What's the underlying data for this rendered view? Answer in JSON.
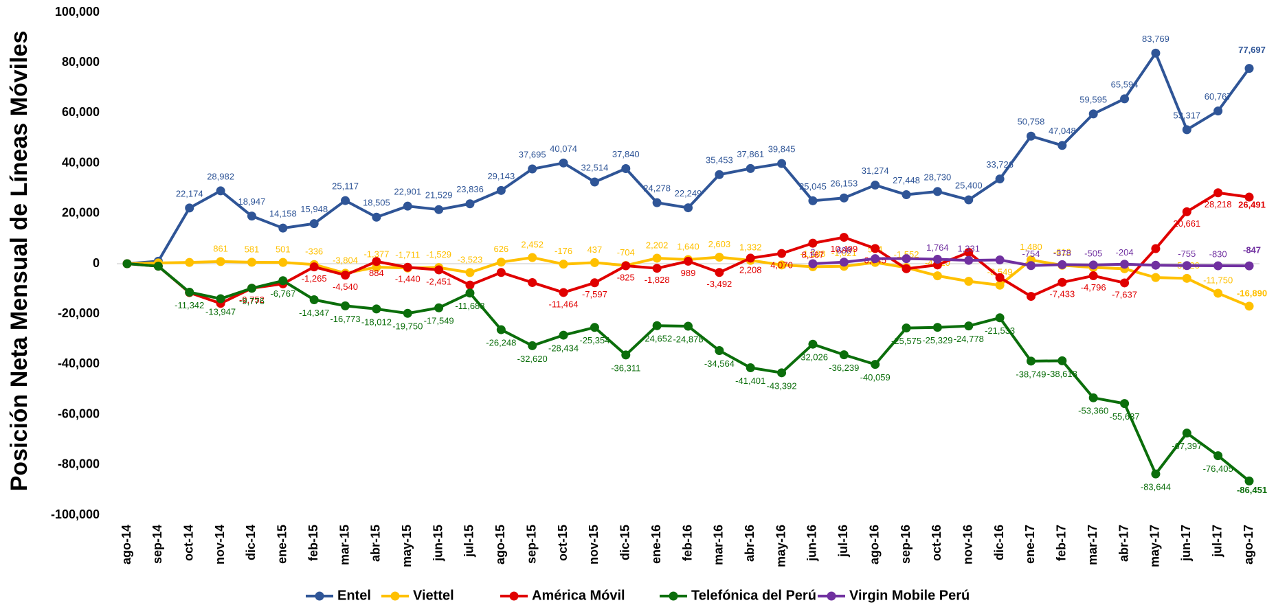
{
  "chart_data": {
    "type": "line",
    "y_label": "Posición Neta Mensual de Líneas Móviles",
    "categories": [
      "ago-14",
      "sep-14",
      "oct-14",
      "nov-14",
      "dic-14",
      "ene-15",
      "feb-15",
      "mar-15",
      "abr-15",
      "may-15",
      "jun-15",
      "jul-15",
      "ago-15",
      "sep-15",
      "oct-15",
      "nov-15",
      "dic-15",
      "ene-16",
      "feb-16",
      "mar-16",
      "abr-16",
      "may-16",
      "jun-16",
      "jul-16",
      "ago-16",
      "sep-16",
      "oct-16",
      "nov-16",
      "dic-16",
      "ene-17",
      "feb-17",
      "mar-17",
      "abr-17",
      "may-17",
      "jun-17",
      "jul-17",
      "ago-17"
    ],
    "ylim": [
      -100000,
      100000
    ],
    "yticks": [
      {
        "value": -100000,
        "label": "-100,000"
      },
      {
        "value": -80000,
        "label": "-80,000"
      },
      {
        "value": -60000,
        "label": "-60,000"
      },
      {
        "value": -40000,
        "label": "-40,000"
      },
      {
        "value": -20000,
        "label": "-20,000"
      },
      0,
      {
        "value": 20000,
        "label": "20,000"
      },
      {
        "value": 40000,
        "label": "40,000"
      },
      {
        "value": 60000,
        "label": "60,000"
      },
      {
        "value": 80000,
        "label": "80,000"
      },
      {
        "value": 100000,
        "label": "100,000"
      }
    ],
    "series": [
      {
        "name": "Entel",
        "color": "#2f5597",
        "values": [
          0,
          1000,
          22174,
          28982,
          18947,
          14158,
          15948,
          25117,
          18505,
          22901,
          21529,
          23836,
          29143,
          37695,
          40074,
          32514,
          37840,
          24278,
          22249,
          35453,
          37861,
          39845,
          25045,
          26153,
          31274,
          27448,
          28730,
          25400,
          33726,
          50758,
          47048,
          59595,
          65594,
          83769,
          53317,
          60767,
          77697
        ],
        "value_labels": [
          null,
          null,
          "22,174",
          "28,982",
          "18,947",
          "14,158",
          "15,948",
          "25,117",
          "18,505",
          "22,901",
          "21,529",
          "23,836",
          "29,143",
          "37,695",
          "40,074",
          "32,514",
          "37,840",
          "24,278",
          "22,249",
          "35,453",
          "37,861",
          "39,845",
          "25,045",
          "26,153",
          "31,274",
          "27,448",
          "28,730",
          "25,400",
          "33,726",
          "50,758",
          "47,048",
          "59,595",
          "65,594",
          "83,769",
          "53,317",
          "60,767",
          "77,697"
        ]
      },
      {
        "name": "Viettel",
        "color": "#ffc000",
        "values": [
          0,
          300,
          500,
          861,
          581,
          501,
          -336,
          -3804,
          -1377,
          -1711,
          -1529,
          -3523,
          626,
          2452,
          -176,
          437,
          -704,
          2202,
          1640,
          2603,
          1332,
          -500,
          -1188,
          -1021,
          504,
          -1552,
          -4810,
          -7000,
          -8549,
          1480,
          -619,
          -1500,
          -2000,
          -5500,
          -5826,
          -11750,
          -16890
        ],
        "value_labels": [
          null,
          null,
          null,
          "861",
          "581",
          "501",
          "-336",
          "-3,804",
          "-1,377",
          "-1,711",
          "-1,529",
          "-3,523",
          "626",
          "2,452",
          "-176",
          "437",
          "-704",
          "2,202",
          "1,640",
          "2,603",
          "1,332",
          null,
          "-1,188",
          "-1,021",
          "504",
          "-1,552",
          "-4,810",
          null,
          "-8,549",
          "1,480",
          "-619",
          null,
          null,
          null,
          "-5,826",
          "-11,750",
          "-16,890"
        ]
      },
      {
        "name": "América Móvil",
        "color": "#e00000",
        "values": [
          0,
          -1000,
          -11500,
          -15800,
          -9752,
          -8000,
          -1265,
          -4540,
          884,
          -1440,
          -2451,
          -8500,
          -3500,
          -7500,
          -11464,
          -7597,
          -825,
          -1828,
          989,
          -3492,
          2208,
          4070,
          8167,
          10499,
          6045,
          -2000,
          -500,
          4500,
          -5500,
          -13000,
          -7433,
          -4796,
          -7637,
          6000,
          20661,
          28218,
          26491
        ],
        "value_labels": [
          null,
          null,
          null,
          null,
          "-9,752",
          null,
          "-1,265",
          "-4,540",
          "884",
          "-1,440",
          "-2,451",
          null,
          null,
          null,
          "-11,464",
          "-7,597",
          "-825",
          "-1,828",
          "989",
          "-3,492",
          "2,208",
          "4,070",
          "8,167",
          "10,499",
          "6,045",
          null,
          null,
          null,
          null,
          null,
          "-7,433",
          "-4,796",
          "-7,637",
          null,
          "20,661",
          "28,218",
          "26,491"
        ]
      },
      {
        "name": "Telefónica del Perú",
        "color": "#0b6e0b",
        "values": [
          0,
          -1000,
          -11342,
          -13947,
          -9776,
          -6767,
          -14347,
          -16773,
          -18012,
          -19750,
          -17549,
          -11688,
          -26248,
          -32620,
          -28434,
          -25354,
          -36311,
          -24652,
          -24878,
          -34564,
          -41401,
          -43392,
          -32026,
          -36239,
          -40059,
          -25575,
          -25329,
          -24778,
          -21533,
          -38749,
          -38618,
          -53360,
          -55637,
          -83644,
          -67397,
          -76405,
          -86451
        ],
        "value_labels": [
          null,
          null,
          "-11,342",
          "-13,947",
          "-9,776",
          "-6,767",
          "-14,347",
          "-16,773",
          "-18,012",
          "-19,750",
          "-17,549",
          "-11,688",
          "-26,248",
          "-32,620",
          "-28,434",
          "-25,354",
          "-36,311",
          "-24,652",
          "-24,878",
          "-34,564",
          "-41,401",
          "-43,392",
          "-32,026",
          "-36,239",
          "-40,059",
          "-25,575",
          "-25,329",
          "-24,778",
          "-21,533",
          "-38,749",
          "-38,618",
          "-53,360",
          "-55,637",
          "-83,644",
          "-67,397",
          "-76,405",
          "-86,451"
        ]
      },
      {
        "name": "Virgin Mobile Perú",
        "color": "#7030a0",
        "values": [
          null,
          null,
          null,
          null,
          null,
          null,
          null,
          null,
          null,
          null,
          null,
          null,
          null,
          null,
          null,
          null,
          null,
          null,
          null,
          null,
          null,
          null,
          2,
          608,
          2000,
          2000,
          1764,
          1331,
          1500,
          -754,
          -378,
          -505,
          -204,
          -600,
          -755,
          -830,
          -847
        ],
        "value_labels": [
          null,
          null,
          null,
          null,
          null,
          null,
          null,
          null,
          null,
          null,
          null,
          null,
          null,
          null,
          null,
          null,
          null,
          null,
          null,
          null,
          null,
          null,
          "2",
          "608",
          null,
          null,
          "1,764",
          "1,331",
          null,
          "-754",
          "-378",
          "-505",
          "-204",
          null,
          "-755",
          "-830",
          "-847"
        ]
      }
    ]
  }
}
